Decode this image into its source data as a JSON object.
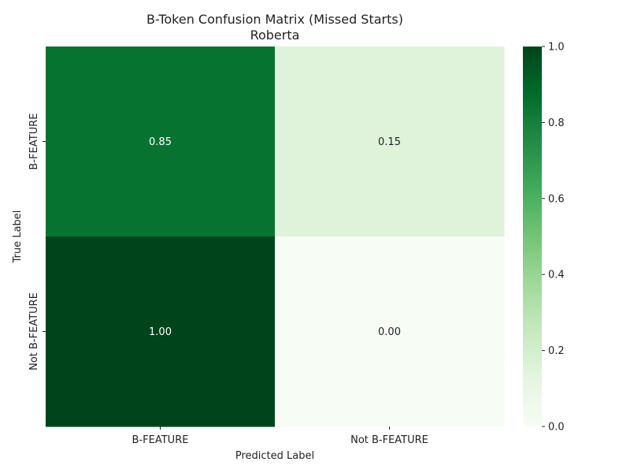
{
  "chart_data": {
    "type": "heatmap",
    "title": "B-Token Confusion Matrix (Missed Starts)",
    "subtitle": "Roberta",
    "xlabel": "Predicted Label",
    "ylabel": "True Label",
    "x_categories": [
      "B-FEATURE",
      "Not B-FEATURE"
    ],
    "y_categories": [
      "B-FEATURE",
      "Not B-FEATURE"
    ],
    "values": [
      [
        0.85,
        0.15
      ],
      [
        1.0,
        0.0
      ]
    ],
    "cell_labels": [
      [
        "0.85",
        "0.15"
      ],
      [
        "1.00",
        "0.00"
      ]
    ],
    "colorbar": {
      "range": [
        0.0,
        1.0
      ],
      "ticks": [
        0.0,
        0.2,
        0.4,
        0.6,
        0.8,
        1.0
      ],
      "tick_labels": [
        "0.0",
        "0.2",
        "0.4",
        "0.6",
        "0.8",
        "1.0"
      ],
      "colormap": "Greens",
      "stops": [
        "#f7fcf5",
        "#e5f5e0",
        "#c7e9c0",
        "#a1d99b",
        "#74c476",
        "#41ab5d",
        "#238b45",
        "#006d2c",
        "#00441b"
      ]
    },
    "grid": false
  }
}
